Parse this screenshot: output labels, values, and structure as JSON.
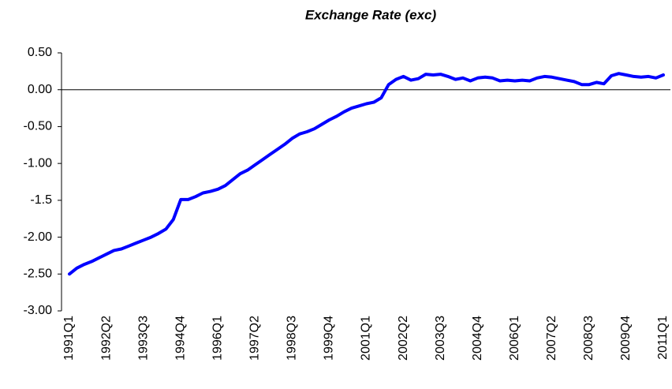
{
  "chart_data": {
    "type": "line",
    "title": "Exchange Rate (exc)",
    "categories": [
      "1991Q1",
      null,
      null,
      null,
      null,
      "1992Q2",
      null,
      null,
      null,
      null,
      "1993Q3",
      null,
      null,
      null,
      null,
      "1994Q4",
      null,
      null,
      null,
      null,
      "1996Q1",
      null,
      null,
      null,
      null,
      "1997Q2",
      null,
      null,
      null,
      null,
      "1998Q3",
      null,
      null,
      null,
      null,
      "1999Q4",
      null,
      null,
      null,
      null,
      "2001Q1",
      null,
      null,
      null,
      null,
      "2002Q2",
      null,
      null,
      null,
      null,
      "2003Q3",
      null,
      null,
      null,
      null,
      "2004Q4",
      null,
      null,
      null,
      null,
      "2006Q1",
      null,
      null,
      null,
      null,
      "2007Q2",
      null,
      null,
      null,
      null,
      "2008Q3",
      null,
      null,
      null,
      null,
      "2009Q4",
      null,
      null,
      null,
      null,
      "2011Q1"
    ],
    "values": [
      -2.5,
      -2.42,
      -2.37,
      -2.33,
      -2.28,
      -2.23,
      -2.18,
      -2.16,
      -2.12,
      -2.08,
      -2.04,
      -2.0,
      -1.95,
      -1.89,
      -1.76,
      -1.49,
      -1.49,
      -1.45,
      -1.4,
      -1.38,
      -1.35,
      -1.3,
      -1.22,
      -1.14,
      -1.09,
      -1.02,
      -0.95,
      -0.88,
      -0.81,
      -0.74,
      -0.66,
      -0.6,
      -0.57,
      -0.53,
      -0.47,
      -0.41,
      -0.36,
      -0.3,
      -0.25,
      -0.22,
      -0.19,
      -0.17,
      -0.11,
      0.07,
      0.14,
      0.18,
      0.13,
      0.15,
      0.21,
      0.2,
      0.21,
      0.18,
      0.14,
      0.16,
      0.12,
      0.16,
      0.17,
      0.16,
      0.12,
      0.13,
      0.12,
      0.13,
      0.12,
      0.16,
      0.18,
      0.17,
      0.15,
      0.13,
      0.11,
      0.07,
      0.07,
      0.1,
      0.08,
      0.19,
      0.22,
      0.2,
      0.18,
      0.17,
      0.18,
      0.16,
      0.2
    ],
    "color": "#0000ff",
    "ylim": [
      -3,
      0.5
    ],
    "yticks": [
      {
        "value": 0.5,
        "label": "0.50"
      },
      {
        "value": 0,
        "label": "0.00"
      },
      {
        "value": -0.5,
        "label": "-0.50"
      },
      {
        "value": -1,
        "label": "-1.00"
      },
      -1.5,
      {
        "value": -2,
        "label": "-2.00"
      },
      {
        "value": -2.5,
        "label": "-2.50"
      },
      {
        "value": -3,
        "label": "-3.00"
      }
    ]
  }
}
